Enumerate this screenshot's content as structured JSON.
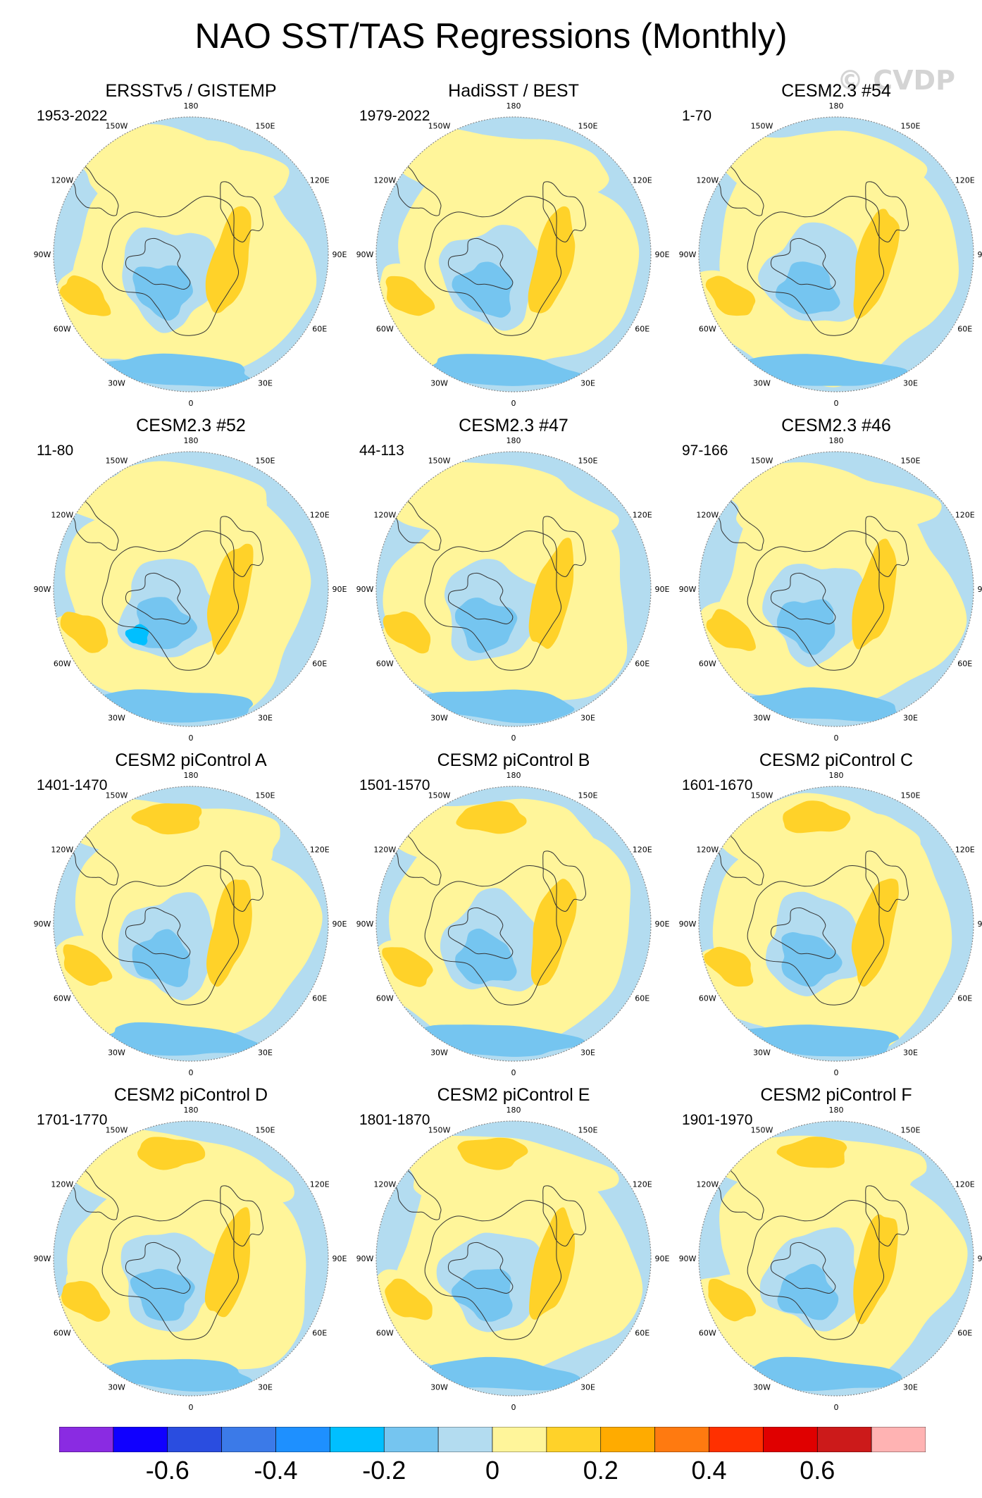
{
  "title": "NAO SST/TAS Regressions (Monthly)",
  "watermark": "© CVDP",
  "panels": [
    {
      "title": "ERSSTv5 / GISTEMP",
      "years": "1953-2022"
    },
    {
      "title": "HadiSST / BEST",
      "years": "1979-2022"
    },
    {
      "title": "CESM2.3 #54",
      "years": "1-70"
    },
    {
      "title": "CESM2.3 #52",
      "years": "11-80"
    },
    {
      "title": "CESM2.3 #47",
      "years": "44-113"
    },
    {
      "title": "CESM2.3 #46",
      "years": "97-166"
    },
    {
      "title": "CESM2 piControl A",
      "years": "1401-1470"
    },
    {
      "title": "CESM2 piControl B",
      "years": "1501-1570"
    },
    {
      "title": "CESM2 piControl C",
      "years": "1601-1670"
    },
    {
      "title": "CESM2 piControl D",
      "years": "1701-1770"
    },
    {
      "title": "CESM2 piControl E",
      "years": "1801-1870"
    },
    {
      "title": "CESM2 piControl F",
      "years": "1901-1970"
    }
  ],
  "longitude_labels": [
    "180",
    "150E",
    "120E",
    "90E",
    "60E",
    "30E",
    "0",
    "30W",
    "60W",
    "90W",
    "120W",
    "150W"
  ],
  "colorbar": {
    "colors": [
      "#8a2be2",
      "#1000ff",
      "#2a4de0",
      "#3b7ae8",
      "#1e90ff",
      "#00bfff",
      "#75c5f0",
      "#b3dcf0",
      "#fff59a",
      "#ffd229",
      "#ffab00",
      "#ff7a10",
      "#ff3000",
      "#e00000",
      "#cc1a1a",
      "#ffb3b3"
    ],
    "tick_labels": [
      "-0.6",
      "-0.4",
      "-0.2",
      "0",
      "0.2",
      "0.4",
      "0.6"
    ]
  },
  "chart_data": {
    "type": "heatmap",
    "title": "NAO SST/TAS Regressions (Monthly)",
    "projection": "north polar stereographic",
    "colorbar_levels": [
      -0.7,
      -0.6,
      -0.5,
      -0.4,
      -0.3,
      -0.2,
      -0.1,
      0,
      0.1,
      0.2,
      0.3,
      0.4,
      0.5,
      0.6,
      0.7
    ],
    "colorbar_tick_values": [
      -0.6,
      -0.4,
      -0.2,
      0,
      0.2,
      0.4,
      0.6
    ],
    "dominant_range": [
      -0.3,
      0.3
    ],
    "pattern_notes": [
      "Warm (0 to 0.2) over Eurasia and the eastern North American subtropical Atlantic belt",
      "Cool (-0.1 to -0.3) over Greenland / Labrador Sea and subpolar North Atlantic",
      "Strongest warm anomaly (0.1 to 0.3) over northern Eurasia east of 30E"
    ]
  }
}
